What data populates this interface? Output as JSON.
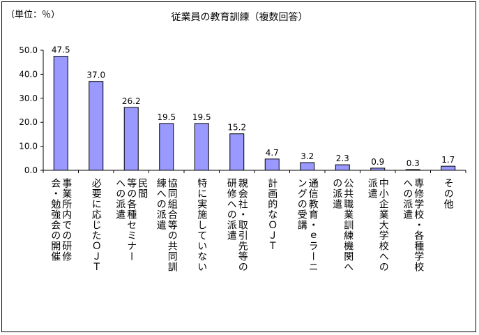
{
  "unit_label": "（単位：％）",
  "chart_title": "従業員の教育訓練（複数回答）",
  "chart_data": {
    "type": "bar",
    "title": "従業員の教育訓練（複数回答）",
    "ylabel": "（単位：％）",
    "ylim": [
      0,
      50
    ],
    "yticks": [
      "0.0",
      "10.0",
      "20.0",
      "30.0",
      "40.0",
      "50.0"
    ],
    "categories": [
      "事業所内での研修会・勉強会の開催",
      "必要に応じたＯＪＴ",
      "民間等の各種セミナーへの派遣",
      "協同組合等の共同訓練への派遣",
      "特に実施していない",
      "親会社・取引先等の研修への派遣",
      "計画的なＯＪＴ",
      "通信教育・ｅラーニングの受講",
      "公共職業訓練機関への派遣",
      "中小企業大学校への派遣",
      "専修学校・各種学校への派遣",
      "その他"
    ],
    "values": [
      47.5,
      37.0,
      26.2,
      19.5,
      19.5,
      15.2,
      4.7,
      3.2,
      2.3,
      0.9,
      0.3,
      1.7
    ],
    "value_labels": [
      "47.5",
      "37.0",
      "26.2",
      "19.5",
      "19.5",
      "15.2",
      "4.7",
      "3.2",
      "2.3",
      "0.9",
      "0.3",
      "1.7"
    ],
    "bar_color": "#9999ff",
    "bar_edge": "#000000",
    "grid": false
  },
  "category_display": [
    [
      "事業所内での研修",
      "会・勉強会の開催"
    ],
    [
      "必要に応じたＯＪＴ"
    ],
    [
      "民間",
      "等の各種セミナー",
      "への派遣"
    ],
    [
      "協同組合等の共同訓",
      "練への派遣"
    ],
    [
      "特に実施していない"
    ],
    [
      "親会社・取引先等の",
      "研修への派遣"
    ],
    [
      "計画的なＯＪＴ"
    ],
    [
      "通信教育・ｅラーニ",
      "ングの受講"
    ],
    [
      "公共職業訓練機関へ",
      "の派遣"
    ],
    [
      "中小企業大学校への",
      "派遣"
    ],
    [
      "専修学校・各種学校",
      "への派遣"
    ],
    [
      "その他"
    ]
  ]
}
